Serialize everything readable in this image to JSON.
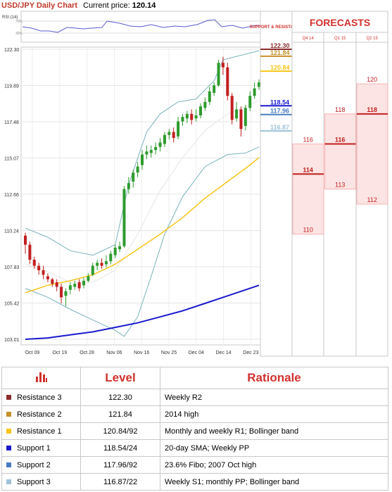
{
  "header": {
    "title": "USD/JPY Daily Chart",
    "current_price_label": "Current price:",
    "current_price": "120.14"
  },
  "colors": {
    "accent": "#d0312d",
    "candle_up": "#2e9b2e",
    "candle_down": "#c21f1f",
    "sma_slow": "#1a1acd",
    "sma_fast": "#f5c518",
    "bollinger": "#78b3ba"
  },
  "rsi": {
    "label": "RSI (14)",
    "levels": [
      "70%",
      "30%"
    ]
  },
  "chart_data": {
    "type": "candlestick",
    "ylim": [
      103.01,
      122.3
    ],
    "y_ticks": [
      "122.30",
      "119.89",
      "117.48",
      "115.07",
      "112.66",
      "110.24",
      "107.83",
      "105.42",
      "103.01"
    ],
    "x_ticks": [
      "Oct 09",
      "Oct 19",
      "Oct 28",
      "Nov 06",
      "Nov 16",
      "Nov 25",
      "Dec 04",
      "Dec 14",
      "Dec 23"
    ],
    "candles": [
      [
        109.9,
        109.3,
        110.1,
        108.7
      ],
      [
        109.3,
        108.3,
        109.5,
        108.0
      ],
      [
        108.3,
        107.9,
        108.5,
        107.7
      ],
      [
        107.9,
        107.6,
        108.1,
        107.3
      ],
      [
        107.6,
        107.3,
        107.9,
        107.0
      ],
      [
        107.2,
        107.0,
        107.4,
        106.8
      ],
      [
        107.0,
        106.7,
        107.1,
        106.5
      ],
      [
        106.8,
        106.5,
        107.0,
        106.2
      ],
      [
        106.5,
        105.8,
        106.7,
        105.4
      ],
      [
        105.9,
        106.2,
        106.4,
        105.2
      ],
      [
        106.3,
        106.6,
        106.8,
        106.0
      ],
      [
        106.5,
        106.7,
        106.9,
        106.3
      ],
      [
        106.8,
        106.4,
        107.0,
        106.2
      ],
      [
        106.6,
        106.9,
        107.1,
        106.4
      ],
      [
        106.9,
        107.2,
        107.4,
        106.8
      ],
      [
        107.3,
        107.9,
        108.1,
        107.2
      ],
      [
        107.9,
        108.1,
        108.3,
        107.6
      ],
      [
        108.1,
        107.9,
        108.4,
        107.7
      ],
      [
        108.0,
        108.2,
        108.6,
        107.8
      ],
      [
        108.2,
        108.7,
        108.9,
        108.0
      ],
      [
        108.6,
        109.1,
        109.3,
        108.4
      ],
      [
        109.0,
        109.2,
        109.5,
        108.8
      ],
      [
        109.2,
        113.0,
        113.2,
        109.1
      ],
      [
        113.0,
        113.4,
        113.8,
        112.7
      ],
      [
        113.5,
        114.1,
        114.3,
        113.1
      ],
      [
        114.1,
        114.5,
        114.8,
        113.8
      ],
      [
        114.6,
        115.3,
        115.6,
        114.3
      ],
      [
        115.3,
        115.5,
        115.9,
        115.0
      ],
      [
        115.4,
        115.6,
        115.9,
        115.1
      ],
      [
        115.6,
        115.8,
        116.1,
        115.3
      ],
      [
        115.8,
        116.1,
        116.4,
        115.5
      ],
      [
        116.0,
        116.6,
        116.8,
        115.8
      ],
      [
        116.6,
        116.8,
        117.0,
        116.3
      ],
      [
        116.8,
        116.4,
        117.1,
        116.1
      ],
      [
        116.5,
        117.5,
        117.8,
        116.3
      ],
      [
        117.5,
        117.8,
        118.0,
        117.2
      ],
      [
        117.7,
        118.0,
        118.2,
        117.4
      ],
      [
        118.0,
        117.6,
        118.3,
        117.3
      ],
      [
        117.7,
        117.9,
        118.3,
        117.5
      ],
      [
        117.9,
        118.5,
        118.7,
        117.7
      ],
      [
        118.4,
        118.8,
        119.1,
        118.2
      ],
      [
        118.8,
        119.5,
        119.8,
        118.6
      ],
      [
        119.4,
        119.9,
        120.1,
        119.2
      ],
      [
        119.9,
        121.4,
        121.6,
        119.8
      ],
      [
        121.4,
        121.1,
        121.8,
        120.6
      ],
      [
        121.1,
        119.2,
        121.4,
        118.9
      ],
      [
        119.2,
        117.6,
        119.4,
        117.3
      ],
      [
        117.7,
        118.3,
        118.8,
        117.5
      ],
      [
        118.3,
        117.0,
        118.5,
        116.5
      ],
      [
        117.2,
        118.4,
        118.6,
        116.9
      ],
      [
        118.4,
        119.2,
        119.5,
        118.2
      ],
      [
        119.2,
        119.7,
        120.1,
        119.0
      ],
      [
        119.8,
        120.1,
        120.3,
        119.6
      ]
    ],
    "sma_slow": [
      [
        0,
        103.01
      ],
      [
        5,
        103.1
      ],
      [
        10,
        103.3
      ],
      [
        15,
        103.5
      ],
      [
        20,
        103.8
      ],
      [
        25,
        104.1
      ],
      [
        30,
        104.5
      ],
      [
        35,
        104.9
      ],
      [
        40,
        105.4
      ],
      [
        45,
        105.9
      ],
      [
        52,
        106.6
      ]
    ],
    "sma_fast": [
      [
        0,
        106.1
      ],
      [
        5,
        106.6
      ],
      [
        10,
        106.9
      ],
      [
        15,
        107.3
      ],
      [
        20,
        108.0
      ],
      [
        25,
        109.0
      ],
      [
        30,
        110.0
      ],
      [
        35,
        111.1
      ],
      [
        40,
        112.4
      ],
      [
        45,
        113.5
      ],
      [
        50,
        114.6
      ],
      [
        52,
        115.1
      ]
    ],
    "bollinger_upper": [
      [
        0,
        110.4
      ],
      [
        5,
        109.8
      ],
      [
        10,
        108.9
      ],
      [
        15,
        108.6
      ],
      [
        20,
        109.3
      ],
      [
        23,
        113.3
      ],
      [
        27,
        116.8
      ],
      [
        30,
        118.0
      ],
      [
        34,
        118.8
      ],
      [
        38,
        119.0
      ],
      [
        42,
        120.2
      ],
      [
        44,
        121.6
      ],
      [
        48,
        121.9
      ],
      [
        52,
        122.2
      ]
    ],
    "bollinger_mid": [
      [
        0,
        108.0
      ],
      [
        5,
        107.5
      ],
      [
        10,
        106.8
      ],
      [
        15,
        106.8
      ],
      [
        20,
        107.6
      ],
      [
        25,
        110.0
      ],
      [
        30,
        112.9
      ],
      [
        35,
        115.1
      ],
      [
        40,
        116.9
      ],
      [
        45,
        118.0
      ],
      [
        50,
        118.6
      ],
      [
        52,
        118.9
      ]
    ],
    "bollinger_lower": [
      [
        0,
        106.4
      ],
      [
        5,
        105.8
      ],
      [
        10,
        105.0
      ],
      [
        15,
        104.3
      ],
      [
        20,
        103.6
      ],
      [
        22,
        103.2
      ],
      [
        25,
        104.5
      ],
      [
        28,
        107.2
      ],
      [
        31,
        110.0
      ],
      [
        35,
        112.5
      ],
      [
        40,
        114.5
      ],
      [
        45,
        115.3
      ],
      [
        49,
        115.4
      ],
      [
        52,
        115.8
      ]
    ],
    "levels": [
      {
        "label": "122.30",
        "value": 122.3,
        "color": "#8b2d2d"
      },
      {
        "label": "121.84",
        "value": 121.84,
        "color": "#c5922a"
      },
      {
        "label": "120.84",
        "value": 120.84,
        "color": "#f5c518"
      },
      {
        "label": "118.54",
        "value": 118.54,
        "color": "#1a1acd"
      },
      {
        "label": "117.96",
        "value": 117.96,
        "color": "#4a7cc0"
      },
      {
        "label": "116.87",
        "value": 116.87,
        "color": "#9fc2d8"
      }
    ]
  },
  "forecasts": {
    "title": "FORECASTS",
    "sr_label": "SUPPORT & RESISTANCE",
    "quarters": [
      {
        "label": "Q4 14",
        "high": "116",
        "mid": "114",
        "low": "110",
        "high_v": 116,
        "mid_v": 114,
        "low_v": 110
      },
      {
        "label": "Q1 15",
        "high": "118",
        "mid": "116",
        "low": "113",
        "high_v": 118,
        "mid_v": 116,
        "low_v": 113
      },
      {
        "label": "Q2 15",
        "high": "120",
        "mid": "118",
        "low": "112",
        "high_v": 120,
        "mid_v": 118,
        "low_v": 112
      }
    ]
  },
  "table": {
    "icon": "bar-chart-icon",
    "headers": [
      "Level",
      "Rationale"
    ],
    "rows": [
      {
        "name": "Resistance 3",
        "level": "122.30",
        "rationale": "Weekly R2",
        "color": "#8b2d2d"
      },
      {
        "name": "Resistance 2",
        "level": "121.84",
        "rationale": "2014 high",
        "color": "#c5922a"
      },
      {
        "name": "Resistance 1",
        "level": "120.84/92",
        "rationale": "Monthly and weekly R1; Bollinger band",
        "color": "#f5c518"
      },
      {
        "name": "Support 1",
        "level": "118.54/24",
        "rationale": "20-day SMA; Weekly PP",
        "color": "#1a1acd"
      },
      {
        "name": "Support 2",
        "level": "117.96/92",
        "rationale": "23.6% Fibo; 2007 Oct high",
        "color": "#4a7cc0"
      },
      {
        "name": "Support 3",
        "level": "116.87/22",
        "rationale": "Weekly S1; monthly PP; Bollinger band",
        "color": "#9fc2d8"
      }
    ]
  }
}
